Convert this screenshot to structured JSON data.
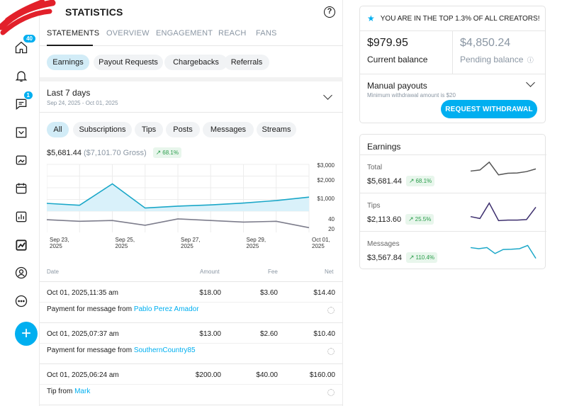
{
  "header": {
    "title": "STATISTICS",
    "help_icon": "help-icon"
  },
  "tabs": [
    {
      "label": "STATEMENTS",
      "active": true
    },
    {
      "label": "OVERVIEW"
    },
    {
      "label": "ENGAGEMENT"
    },
    {
      "label": "REACH"
    },
    {
      "label": "FANS"
    }
  ],
  "nav": {
    "home_badge": "40",
    "messages_badge": "1",
    "icons": [
      "home-icon",
      "bell-icon",
      "messages-icon",
      "collections-icon",
      "vault-icon",
      "calendar-icon",
      "statistics-icon",
      "trending-icon",
      "profile-icon",
      "more-icon",
      "add-icon"
    ]
  },
  "statement_chips": [
    "Earnings",
    "Payout Requests",
    "Chargebacks",
    "Referrals"
  ],
  "period": {
    "title": "Last 7 days",
    "range": "Sep 24, 2025 - Oct 01, 2025"
  },
  "filter_chips": [
    "All",
    "Subscriptions",
    "Tips",
    "Posts",
    "Messages",
    "Streams"
  ],
  "summary": {
    "net": "$5,681.44",
    "gross": "($7,101.70 Gross)",
    "change": "68.1%"
  },
  "colors": {
    "accent": "#00aff0",
    "positive": "#2a9d4b",
    "line_main": "#1aa7c8",
    "line_count": "#7d7d8c",
    "spark_total": "#555555",
    "spark_tips": "#3d2f6e",
    "spark_messages": "#1aa7c8"
  },
  "chart_data": {
    "type": "line",
    "x": [
      "Sep 23, 2025",
      "Sep 24, 2025",
      "Sep 25, 2025",
      "Sep 26, 2025",
      "Sep 27, 2025",
      "Sep 28, 2025",
      "Sep 29, 2025",
      "Sep 30, 2025",
      "Oct 01, 2025"
    ],
    "x_tick_labels": [
      [
        "Sep 23,",
        "2025"
      ],
      [
        "Sep 25,",
        "2025"
      ],
      [
        "Sep 27,",
        "2025"
      ],
      [
        "Sep 29,",
        "2025"
      ],
      [
        "Oct 01,",
        "2025"
      ]
    ],
    "amount_axis_ticks": [
      "$3,000",
      "$2,000",
      "$1,000"
    ],
    "count_axis_ticks": [
      "40",
      "20"
    ],
    "series": [
      {
        "values": [
          500,
          380,
          1750,
          200,
          320,
          400,
          520,
          680,
          900
        ],
        "ylim": [
          0,
          3000
        ],
        "fill": true
      },
      {
        "values": [
          32,
          28,
          30,
          18,
          34,
          30,
          26,
          28,
          12
        ],
        "ylim": [
          0,
          50
        ],
        "fill": false
      }
    ],
    "grid": true
  },
  "table": {
    "columns": {
      "date": "Date",
      "amount": "Amount",
      "fee": "Fee",
      "net": "Net"
    },
    "rows": [
      {
        "date": "Oct 01, 2025,11:35 am",
        "amount": "$18.00",
        "fee": "$3.60",
        "net": "$14.40",
        "desc": "Payment for message from",
        "user": "Pablo Perez Amador"
      },
      {
        "date": "Oct 01, 2025,07:37 am",
        "amount": "$13.00",
        "fee": "$2.60",
        "net": "$10.40",
        "desc": "Payment for message from",
        "user": "SouthernCountry85"
      },
      {
        "date": "Oct 01, 2025,06:24 am",
        "amount": "$200.00",
        "fee": "$40.00",
        "net": "$160.00",
        "desc": "Tip from",
        "user": "Mark"
      }
    ]
  },
  "top_banner": "YOU ARE IN THE TOP 1.3% OF ALL CREATORS!",
  "balance": {
    "current_value": "$979.95",
    "current_label": "Current balance",
    "pending_value": "$4,850.24",
    "pending_label": "Pending balance"
  },
  "payouts": {
    "title": "Manual payouts",
    "subtitle": "Minimum withdrawal amount is $20",
    "button": "REQUEST WITHDRAWAL"
  },
  "earnings_card": {
    "title": "Earnings",
    "rows": [
      {
        "label": "Total",
        "value": "$5,681.44",
        "change": "68.1%",
        "spark": [
          0.62,
          0.66,
          0.95,
          0.48,
          0.54,
          0.55,
          0.6,
          0.7
        ]
      },
      {
        "label": "Tips",
        "value": "$2,113.60",
        "change": "25.5%",
        "spark": [
          0.35,
          0.28,
          0.85,
          0.2,
          0.22,
          0.22,
          0.24,
          0.7
        ]
      },
      {
        "label": "Messages",
        "value": "$3,567.84",
        "change": "110.4%",
        "spark": [
          0.62,
          0.58,
          0.62,
          0.4,
          0.55,
          0.56,
          0.58,
          0.7,
          0.22
        ]
      }
    ]
  }
}
